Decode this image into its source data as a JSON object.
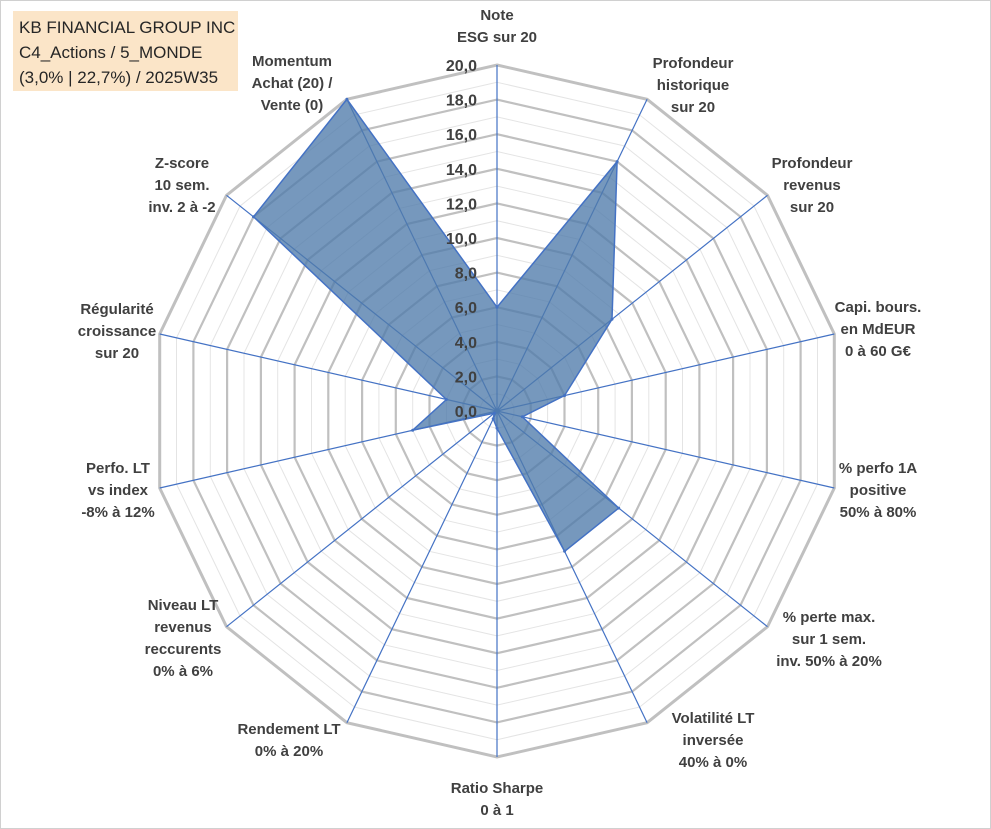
{
  "title_lines": [
    "KB FINANCIAL GROUP INC",
    "C4_Actions / 5_MONDE",
    "(3,0% | 22,7%) / 2025W35"
  ],
  "chart_data": {
    "type": "radar",
    "title": "KB FINANCIAL GROUP INC",
    "scale": {
      "min": 0,
      "max": 20,
      "step": 2,
      "minor_step": 1
    },
    "tick_labels": [
      "0,0",
      "2,0",
      "4,0",
      "6,0",
      "8,0",
      "10,0",
      "12,0",
      "14,0",
      "16,0",
      "18,0",
      "20,0"
    ],
    "axes": [
      {
        "label": [
          "Note",
          "ESG sur 20"
        ],
        "value": 6.0
      },
      {
        "label": [
          "Profondeur",
          "historique",
          "sur 20"
        ],
        "value": 16.0
      },
      {
        "label": [
          "Profondeur",
          "revenus",
          "sur 20"
        ],
        "value": 8.5
      },
      {
        "label": [
          "Capi. bours.",
          "en MdEUR",
          "0 à 60 G€"
        ],
        "value": 4.0
      },
      {
        "label": [
          "% perfo 1A",
          "positive",
          "50% à 80%"
        ],
        "value": 1.5
      },
      {
        "label": [
          "% perte max.",
          "sur 1 sem.",
          "inv. 50% à 20%"
        ],
        "value": 9.0
      },
      {
        "label": [
          "Volatilité LT",
          "inversée",
          "40% à 0%"
        ],
        "value": 9.0
      },
      {
        "label": [
          "Ratio Sharpe",
          "0 à 1"
        ],
        "value": 1.0
      },
      {
        "label": [
          "Rendement LT",
          "0% à 20%"
        ],
        "value": 0.5
      },
      {
        "label": [
          "Niveau LT",
          "revenus",
          "reccurents",
          "0% à 6%"
        ],
        "value": 0.2
      },
      {
        "label": [
          "Perfo. LT",
          "vs index",
          "-8% à 12%"
        ],
        "value": 5.0
      },
      {
        "label": [
          "Régularité",
          "croissance",
          "sur 20"
        ],
        "value": 3.0
      },
      {
        "label": [
          "Z-score",
          "10 sem.",
          "inv. 2 à -2"
        ],
        "value": 18.0
      },
      {
        "label": [
          "Momentum",
          "Achat (20) /",
          "Vente (0)"
        ],
        "value": 20.0
      }
    ],
    "colors": {
      "fill": "#4f7bab",
      "stroke": "#4472c4",
      "grid": "#c0c0c0",
      "minor_grid": "#e4e4e4",
      "axis": "#4472c4"
    }
  }
}
